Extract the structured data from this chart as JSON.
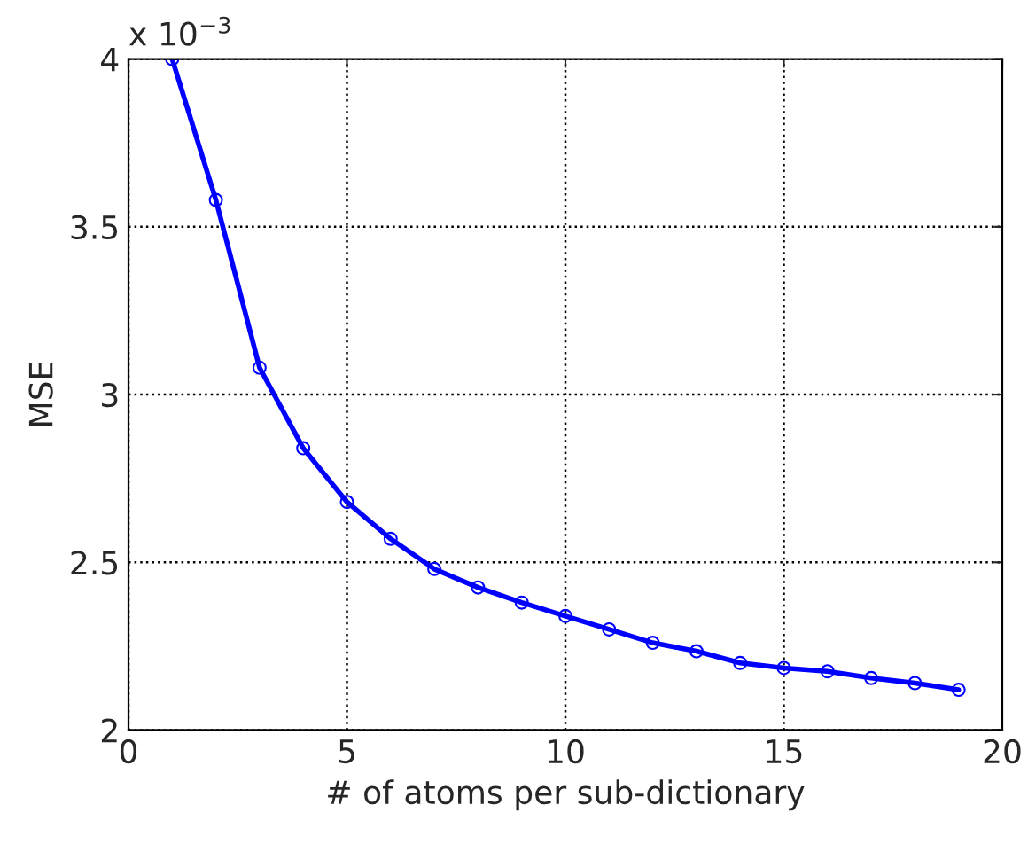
{
  "chart_data": {
    "type": "line",
    "xlabel": "# of atoms per sub-dictionary",
    "ylabel": "MSE",
    "annotations": [
      "x 10$^{−3}$"
    ],
    "x": [
      1,
      2,
      3,
      4,
      5,
      6,
      7,
      8,
      9,
      10,
      11,
      12,
      13,
      14,
      15,
      16,
      17,
      18,
      19
    ],
    "series": [
      {
        "color": "#0000ff",
        "values": [
          4.0,
          3.58,
          3.08,
          2.84,
          2.68,
          2.57,
          2.48,
          2.425,
          2.38,
          2.34,
          2.3,
          2.26,
          2.235,
          2.2,
          2.185,
          2.175,
          2.155,
          2.14,
          2.12
        ]
      }
    ],
    "xlim": [
      0,
      20
    ],
    "ylim": [
      2,
      4
    ],
    "xticks": [
      0,
      5,
      10,
      15,
      20
    ],
    "yticks": [
      2,
      {
        "value": 2.5,
        "label": "2.5"
      },
      3,
      {
        "value": 3.5,
        "label": "3.5"
      },
      4
    ],
    "grid": true,
    "marker": "circle",
    "line_style": "solid"
  }
}
